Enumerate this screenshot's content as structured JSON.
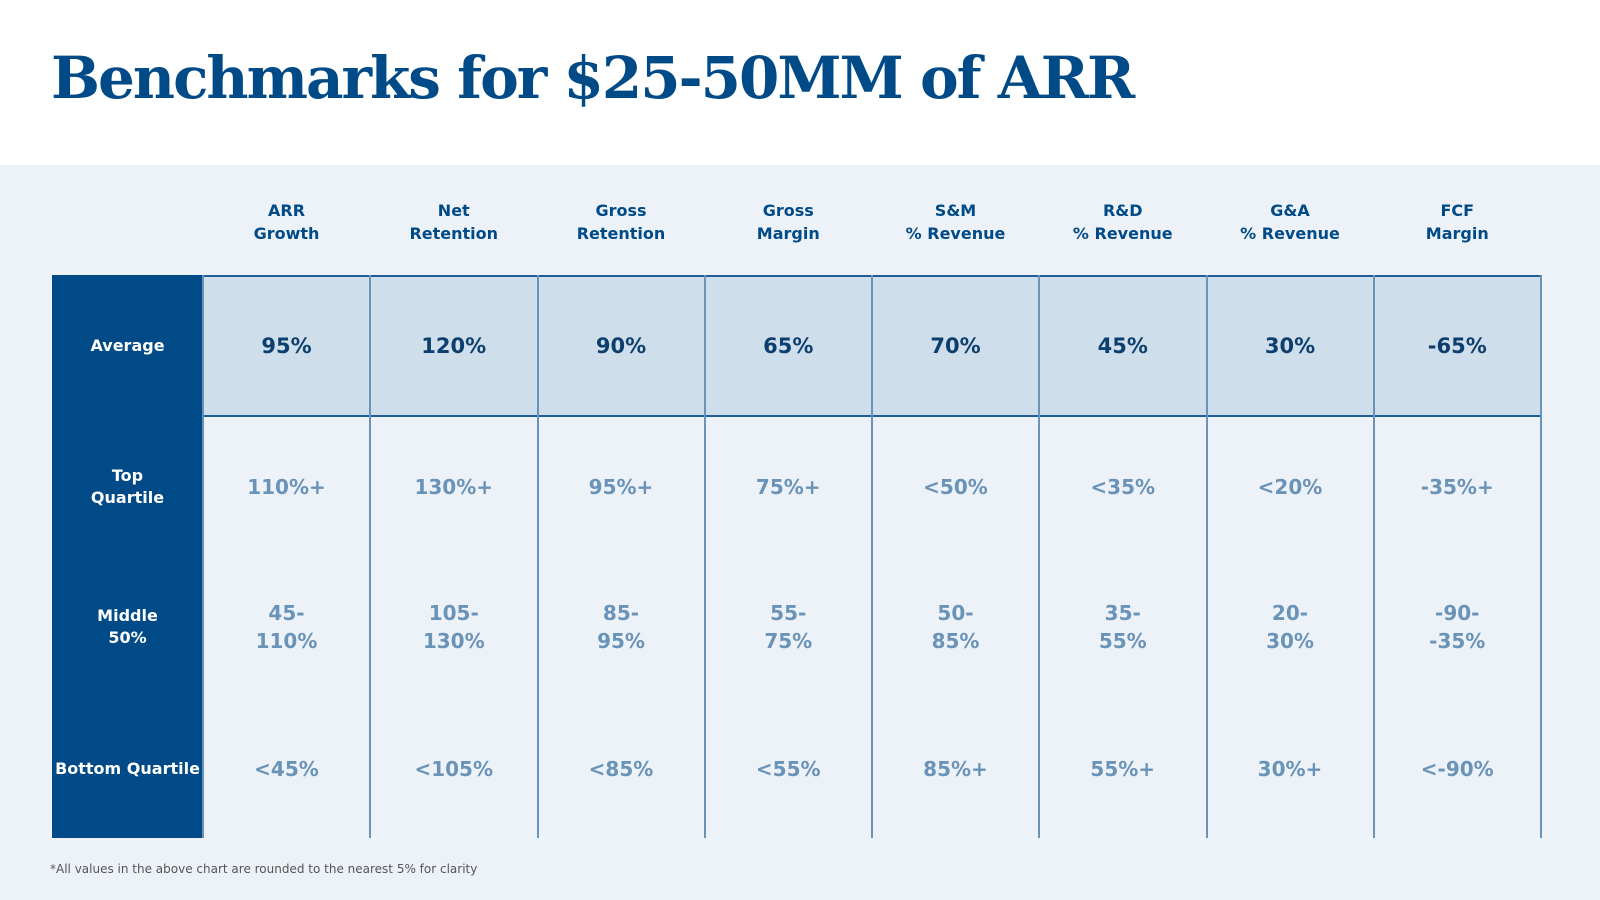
{
  "title": "Benchmarks for $25-50MM of ARR",
  "columns": [
    [
      "ARR",
      "Growth"
    ],
    [
      "Net",
      "Retention"
    ],
    [
      "Gross",
      "Retention"
    ],
    [
      "Gross",
      "Margin"
    ],
    [
      "S&M",
      "% Revenue"
    ],
    [
      "R&D",
      "% Revenue"
    ],
    [
      "G&A",
      "% Revenue"
    ],
    [
      "FCF",
      "Margin"
    ]
  ],
  "rows": [
    {
      "label": [
        "Average"
      ],
      "values": [
        [
          "95%"
        ],
        [
          "120%"
        ],
        [
          "90%"
        ],
        [
          "65%"
        ],
        [
          "70%"
        ],
        [
          "45%"
        ],
        [
          "30%"
        ],
        [
          "-65%"
        ]
      ]
    },
    {
      "label": [
        "Top",
        "Quartile"
      ],
      "values": [
        [
          "110%+"
        ],
        [
          "130%+"
        ],
        [
          "95%+"
        ],
        [
          "75%+"
        ],
        [
          "<50%"
        ],
        [
          "<35%"
        ],
        [
          "<20%"
        ],
        [
          "-35%+"
        ]
      ]
    },
    {
      "label": [
        "Middle",
        "50%"
      ],
      "values": [
        [
          "45-",
          "110%"
        ],
        [
          "105-",
          "130%"
        ],
        [
          "85-",
          "95%"
        ],
        [
          "55-",
          "75%"
        ],
        [
          "50-",
          "85%"
        ],
        [
          "35-",
          "55%"
        ],
        [
          "20-",
          "30%"
        ],
        [
          "-90-",
          "-35%"
        ]
      ]
    },
    {
      "label": [
        "Bottom Quartile"
      ],
      "values": [
        [
          "<45%"
        ],
        [
          "<105%"
        ],
        [
          "<85%"
        ],
        [
          "<55%"
        ],
        [
          "85%+"
        ],
        [
          "55%+"
        ],
        [
          "30%+"
        ],
        [
          "<-90%"
        ]
      ]
    }
  ],
  "footnote": "*All values in the above chart are rounded to the nearest 5% for clarity",
  "colors": {
    "brand": "#004b87",
    "average_band": "#cfdeeb",
    "background": "#edf2f8",
    "value_text": "#6a93b8"
  }
}
